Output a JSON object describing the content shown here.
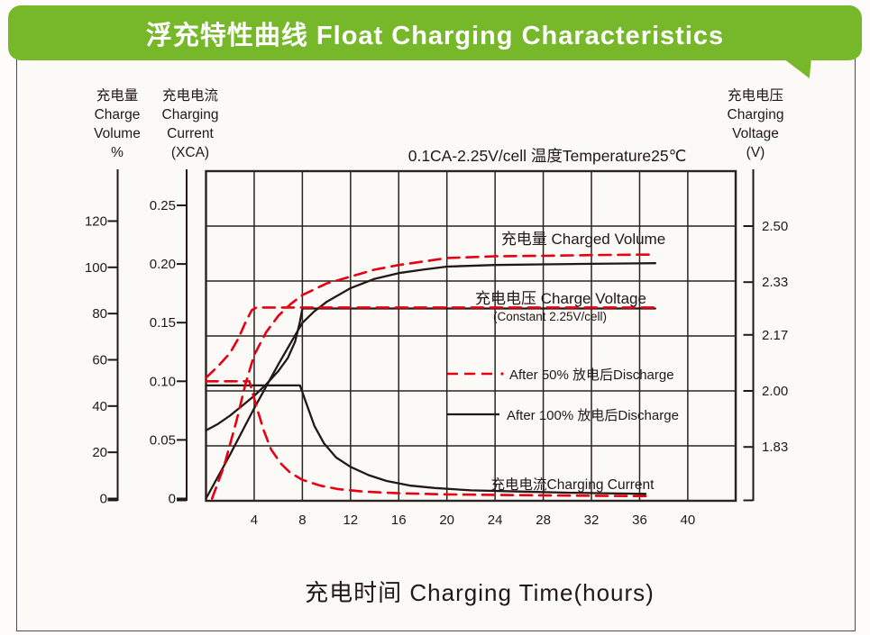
{
  "banner": {
    "title": "浮充特性曲线  Float Charging Characteristics",
    "bg_color": "#76b82a",
    "text_color": "#ffffff"
  },
  "colors": {
    "red": "#e60012",
    "black": "#231815",
    "grid": "#2b2320",
    "frame": "#4d4d4d"
  },
  "chart_data": {
    "type": "line",
    "condition_title": "0.1CA-2.25V/cell  温度Temperature25℃",
    "xlabel": "充电时间  Charging Time(hours)",
    "x_axis": {
      "range_hours": [
        0,
        44
      ],
      "tick_step_hours": 4,
      "ticks": [
        "4",
        "8",
        "12",
        "16",
        "20",
        "24",
        "28",
        "32",
        "36",
        "40"
      ]
    },
    "left_axis_volume": {
      "header_lines": [
        "充电量",
        "Charge",
        "Volume",
        "%"
      ],
      "ticks": [
        "0",
        "20",
        "40",
        "60",
        "80",
        "100",
        "120"
      ]
    },
    "left_axis_current": {
      "header_lines": [
        "充电电流",
        "Charging",
        "Current",
        "(XCA)"
      ],
      "ticks": [
        "0",
        "0.05",
        "0.10",
        "0.15",
        "0.20",
        "0.25"
      ]
    },
    "right_axis_voltage": {
      "header_lines": [
        "充电电压",
        "Charging",
        "Voltage",
        "(V)"
      ],
      "ticks": [
        "1.83",
        "2.00",
        "2.17",
        "2.33",
        "2.50"
      ]
    },
    "inline_labels": {
      "charged_volume": "充电量 Charged Volume",
      "charge_voltage": "充电电压 Charge Voltage",
      "charge_voltage_sub": "(Constant 2.25V/cell)",
      "charging_current": "充电电流Charging Current"
    },
    "legend": [
      {
        "label": "After 50% 放电后Discharge",
        "style": "dashed",
        "color": "red"
      },
      {
        "label": "After 100% 放电后Discharge",
        "style": "solid",
        "color": "black"
      }
    ],
    "grid": true,
    "series": [
      {
        "name": "charged-volume-after-100-discharge",
        "axis": "volume",
        "style": "solid",
        "color": "black",
        "points": [
          [
            0,
            0
          ],
          [
            2,
            19
          ],
          [
            4,
            39
          ],
          [
            6,
            58
          ],
          [
            7,
            67
          ],
          [
            8,
            76
          ],
          [
            9,
            81
          ],
          [
            10,
            85
          ],
          [
            12,
            91
          ],
          [
            14,
            95
          ],
          [
            16,
            97.5
          ],
          [
            18,
            99
          ],
          [
            20,
            100.3
          ],
          [
            24,
            101
          ],
          [
            28,
            101.3
          ],
          [
            32,
            101.5
          ],
          [
            36,
            101.7
          ],
          [
            37.3,
            101.8
          ]
        ]
      },
      {
        "name": "charged-volume-after-50-discharge",
        "axis": "volume",
        "style": "dashed",
        "color": "red",
        "points": [
          [
            0.5,
            0
          ],
          [
            1.5,
            14
          ],
          [
            2.5,
            33
          ],
          [
            3.3,
            50
          ],
          [
            4,
            62
          ],
          [
            5,
            72
          ],
          [
            6,
            79
          ],
          [
            7,
            84
          ],
          [
            8,
            88
          ],
          [
            10,
            93
          ],
          [
            12,
            96
          ],
          [
            14,
            99
          ],
          [
            16,
            101
          ],
          [
            18,
            102.5
          ],
          [
            20,
            104
          ],
          [
            24,
            104.8
          ],
          [
            28,
            105
          ],
          [
            32,
            105.3
          ],
          [
            36,
            105.5
          ],
          [
            37.3,
            105.5
          ]
        ]
      },
      {
        "name": "charge-voltage-after-100-discharge",
        "axis": "voltage",
        "style": "solid",
        "color": "black",
        "points": [
          [
            0,
            1.88
          ],
          [
            1,
            1.9
          ],
          [
            2,
            1.925
          ],
          [
            3,
            1.955
          ],
          [
            4,
            1.985
          ],
          [
            5,
            2.02
          ],
          [
            6,
            2.06
          ],
          [
            6.8,
            2.1
          ],
          [
            7.4,
            2.15
          ],
          [
            7.8,
            2.21
          ],
          [
            8,
            2.25
          ],
          [
            37.3,
            2.25
          ]
        ]
      },
      {
        "name": "charge-voltage-after-50-discharge",
        "axis": "voltage",
        "style": "dashed",
        "color": "red",
        "points": [
          [
            0,
            2.04
          ],
          [
            1,
            2.075
          ],
          [
            2,
            2.115
          ],
          [
            2.7,
            2.16
          ],
          [
            3.3,
            2.21
          ],
          [
            3.8,
            2.245
          ],
          [
            4.2,
            2.253
          ],
          [
            37.3,
            2.253
          ]
        ]
      },
      {
        "name": "charging-current-after-100-discharge",
        "axis": "current",
        "style": "solid",
        "color": "black",
        "points": [
          [
            0,
            0.0965
          ],
          [
            7.8,
            0.0965
          ],
          [
            8.3,
            0.082
          ],
          [
            9,
            0.062
          ],
          [
            9.8,
            0.047
          ],
          [
            10.8,
            0.035
          ],
          [
            12,
            0.027
          ],
          [
            13.5,
            0.02
          ],
          [
            15,
            0.015
          ],
          [
            17,
            0.011
          ],
          [
            19,
            0.009
          ],
          [
            22,
            0.007
          ],
          [
            26,
            0.006
          ],
          [
            30,
            0.005
          ],
          [
            33,
            0.0045
          ],
          [
            36.5,
            0.004
          ]
        ]
      },
      {
        "name": "charging-current-after-50-discharge",
        "axis": "current",
        "style": "dashed",
        "color": "red",
        "points": [
          [
            0,
            0.1
          ],
          [
            3.6,
            0.1
          ],
          [
            4.2,
            0.078
          ],
          [
            4.8,
            0.058
          ],
          [
            5.4,
            0.042
          ],
          [
            6.2,
            0.03
          ],
          [
            7,
            0.022
          ],
          [
            8,
            0.016
          ],
          [
            9.5,
            0.011
          ],
          [
            11,
            0.008
          ],
          [
            13,
            0.006
          ],
          [
            16,
            0.0045
          ],
          [
            20,
            0.0035
          ],
          [
            25,
            0.003
          ],
          [
            30,
            0.0025
          ],
          [
            37,
            0.002
          ]
        ]
      }
    ]
  }
}
